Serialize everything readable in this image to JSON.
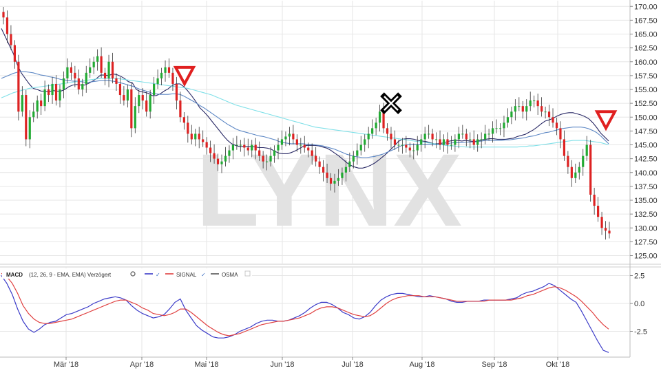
{
  "chart_data": {
    "type": "line",
    "watermark": "LYNX",
    "x_axis": {
      "ticks": [
        "Mär '18",
        "Apr '18",
        "Mai '18",
        "Jun '18",
        "Jul '18",
        "Aug '18",
        "Sep '18",
        "Okt '18"
      ]
    },
    "price_panel": {
      "type": "candlestick",
      "y_axis": {
        "range": [
          125,
          170
        ],
        "ticks": [
          "170.00",
          "167.50",
          "165.00",
          "162.50",
          "160.00",
          "157.50",
          "155.00",
          "152.50",
          "150.00",
          "147.50",
          "145.00",
          "142.50",
          "140.00",
          "137.50",
          "135.00",
          "132.50",
          "130.00",
          "127.50",
          "125.00"
        ]
      },
      "closes": [
        168,
        165,
        163,
        160,
        151,
        154,
        146,
        150,
        151,
        153,
        152,
        155,
        154,
        156,
        153,
        155,
        157,
        159,
        158,
        157,
        155,
        156,
        158,
        159,
        160,
        161,
        158,
        157,
        160,
        157,
        156,
        154,
        153,
        155,
        148,
        152,
        154,
        153,
        151,
        154,
        156,
        157,
        158,
        159,
        158,
        156,
        153,
        150,
        149,
        147,
        146,
        147,
        146,
        145.5,
        144.5,
        143.5,
        142.5,
        141.5,
        142,
        143,
        144,
        145,
        145,
        145,
        144.5,
        144,
        145,
        144,
        143,
        142,
        142,
        143,
        144,
        145,
        146,
        146.5,
        147,
        146,
        145,
        145,
        144.5,
        144,
        143,
        142,
        141,
        140,
        139,
        138,
        138.5,
        139,
        140,
        141,
        142,
        143,
        144,
        145,
        146,
        147,
        148,
        149,
        151,
        148,
        147,
        146,
        145,
        145,
        145,
        144.5,
        144,
        144,
        145,
        146,
        147,
        147,
        146,
        146,
        145,
        146,
        145,
        145,
        146,
        147,
        147,
        146,
        146,
        145,
        146,
        146,
        147,
        147,
        148,
        148,
        148,
        149,
        150,
        151,
        152,
        152,
        151,
        152,
        153,
        153,
        152,
        151,
        151,
        150,
        149,
        148,
        146,
        143,
        141,
        139,
        140,
        141,
        143,
        145,
        136,
        134,
        132,
        130,
        129.5,
        129
      ],
      "series": [
        {
          "name": "EMA short",
          "color": "#2a2a66",
          "values": [
            166,
            164.5,
            163,
            161.5,
            159.5,
            158,
            157,
            156,
            155.2,
            155,
            154.7,
            154.7,
            154.6,
            154.8,
            154.7,
            154.7,
            155,
            155.5,
            155.8,
            155.9,
            155.8,
            155.8,
            156.1,
            156.5,
            157,
            157.6,
            157.6,
            157.5,
            157.8,
            157.7,
            157.4,
            157,
            156.4,
            156.2,
            155,
            154.6,
            154.5,
            154.3,
            153.9,
            153.9,
            154.2,
            154.7,
            155.1,
            155.7,
            156,
            156,
            155.5,
            154.7,
            153.8,
            152.8,
            151.7,
            151,
            150.2,
            149.3,
            148.4,
            147.5,
            146.6,
            145.8,
            145.2,
            144.9,
            144.7,
            144.7,
            144.7,
            144.7,
            144.6,
            144.5,
            144.5,
            144.4,
            144.2,
            143.8,
            143.5,
            143.4,
            143.4,
            143.6,
            143.9,
            144.3,
            144.7,
            144.9,
            144.9,
            144.9,
            144.8,
            144.6,
            144.4,
            144,
            143.5,
            143,
            142.4,
            141.8,
            141.3,
            141,
            140.8,
            140.8,
            141,
            141.3,
            141.7,
            142.2,
            142.8,
            143.4,
            144.1,
            144.8,
            145.6,
            146,
            146.1,
            146.1,
            146,
            145.8,
            145.7,
            145.6,
            145.4,
            145.2,
            145.2,
            145.3,
            145.5,
            145.7,
            145.8,
            145.8,
            145.7,
            145.8,
            145.7,
            145.6,
            145.7,
            145.9,
            146,
            146.1,
            146.1,
            146,
            146,
            146,
            146.1,
            146.2,
            146.5,
            146.7,
            146.9,
            147.3,
            147.7,
            148.2,
            148.8,
            149.3,
            149.5,
            149.8,
            150.2,
            150.5,
            150.7,
            150.8,
            150.8,
            150.6,
            150.4,
            150.1,
            149.7,
            149,
            148.1,
            147.1,
            146.4,
            145.7
          ]
        },
        {
          "name": "EMA mid",
          "color": "#5b86c4",
          "values": [
            157,
            157.3,
            157.6,
            157.9,
            158.1,
            158.2,
            158.2,
            158.1,
            158,
            157.8,
            157.6,
            157.5,
            157.3,
            157.2,
            157,
            156.8,
            156.7,
            156.6,
            156.5,
            156.5,
            156.4,
            156.3,
            156.3,
            156.4,
            156.5,
            156.6,
            156.6,
            156.6,
            156.5,
            156.4,
            156.2,
            156,
            155.8,
            155.6,
            155.3,
            155,
            154.8,
            154.6,
            154.3,
            154.2,
            154.1,
            154.1,
            154.1,
            154.2,
            154.2,
            154.1,
            153.8,
            153.4,
            153,
            152.6,
            152.1,
            151.7,
            151.2,
            150.7,
            150.2,
            149.7,
            149.2,
            148.7,
            148.3,
            147.9,
            147.6,
            147.4,
            147.2,
            147,
            146.8,
            146.6,
            146.5,
            146.3,
            146.1,
            145.9,
            145.6,
            145.4,
            145.3,
            145.2,
            145.2,
            145.2,
            145.2,
            145.1,
            145.1,
            145,
            144.9,
            144.8,
            144.6,
            144.4,
            144.2,
            143.9,
            143.6,
            143.3,
            143.1,
            142.9,
            142.8,
            142.7,
            142.7,
            142.8,
            142.9,
            143.1,
            143.3,
            143.6,
            143.9,
            144.2,
            144.6,
            144.9,
            145,
            145.1,
            145.1,
            145.1,
            145.1,
            145.1,
            145.1,
            145,
            145,
            145.1,
            145.2,
            145.3,
            145.4,
            145.4,
            145.4,
            145.5,
            145.5,
            145.5,
            145.6,
            145.7,
            145.8,
            145.8,
            145.8,
            145.8,
            145.8,
            145.9,
            145.9,
            146,
            146.1,
            146.2,
            146.3,
            146.5,
            146.6,
            146.8,
            147,
            147.2,
            147.3,
            147.5,
            147.7,
            147.9,
            148,
            148.1,
            148.2,
            148.2,
            148.2,
            148.1,
            147.9,
            147.6,
            147.2,
            146.6,
            145.9,
            145.2
          ]
        },
        {
          "name": "EMA long",
          "color": "#7fe0e8",
          "values": [
            153.5,
            153.8,
            154.1,
            154.4,
            154.6,
            154.8,
            155,
            155.2,
            155.3,
            155.4,
            155.5,
            155.6,
            155.7,
            155.8,
            155.9,
            156,
            156.1,
            156.2,
            156.3,
            156.4,
            156.5,
            156.6,
            156.7,
            156.8,
            156.9,
            157,
            157,
            157,
            157,
            157,
            156.9,
            156.8,
            156.7,
            156.6,
            156.5,
            156.4,
            156.3,
            156.2,
            156.1,
            156,
            155.9,
            155.8,
            155.7,
            155.6,
            155.5,
            155.4,
            155.3,
            155.2,
            155,
            154.8,
            154.6,
            154.4,
            154.2,
            154,
            153.7,
            153.4,
            153.1,
            152.8,
            152.5,
            152.2,
            152,
            151.8,
            151.6,
            151.4,
            151.2,
            151,
            150.8,
            150.6,
            150.4,
            150.2,
            150,
            149.8,
            149.6,
            149.4,
            149.2,
            149,
            148.8,
            148.6,
            148.4,
            148.2,
            148.1,
            148,
            147.9,
            147.8,
            147.7,
            147.6,
            147.5,
            147.4,
            147.3,
            147.2,
            147.1,
            147,
            146.9,
            146.8,
            146.7,
            146.6,
            146.5,
            146.4,
            146.3,
            146.2,
            146.1,
            146,
            145.9,
            145.8,
            145.7,
            145.6,
            145.5,
            145.4,
            145.3,
            145.2,
            145.1,
            145,
            144.9,
            144.8,
            144.8,
            144.7,
            144.7,
            144.6,
            144.6,
            144.6,
            144.6,
            144.6,
            144.6,
            144.6,
            144.6,
            144.6,
            144.6,
            144.6,
            144.6,
            144.6,
            144.6,
            144.7,
            144.7,
            144.8,
            144.8,
            144.9,
            145,
            145.1,
            145.2,
            145.3,
            145.4,
            145.5,
            145.6,
            145.7,
            145.8,
            145.8,
            145.8,
            145.8,
            145.7,
            145.6,
            145.5,
            145.4,
            145.2,
            145
          ]
        }
      ],
      "markers": [
        {
          "symbol": "down-triangle",
          "color": "#e02020",
          "x_label": "Apr '18",
          "price": 157.5
        },
        {
          "symbol": "cross",
          "color": "#000000",
          "x_label": "Jul '18",
          "price": 152.5
        },
        {
          "symbol": "down-triangle",
          "color": "#e02020",
          "x_label": "Okt '18",
          "price": 149.5
        }
      ]
    },
    "macd_panel": {
      "legend": {
        "label": "MACD",
        "params": "(12, 26, 9 - EMA, EMA) Verzögert",
        "signal": "SIGNAL",
        "osma": "OSMA"
      },
      "y_axis": {
        "range": [
          -4.5,
          3.0
        ],
        "ticks": [
          "2.5",
          "0.0",
          "-2.5"
        ]
      },
      "series": [
        {
          "name": "MACD",
          "color": "#3b3bc8",
          "values": [
            2.5,
            1.8,
            0.8,
            -0.5,
            -1.6,
            -2.3,
            -2.6,
            -2.3,
            -1.9,
            -1.7,
            -1.6,
            -1.3,
            -1.0,
            -0.9,
            -0.7,
            -0.5,
            -0.3,
            0.0,
            0.2,
            0.4,
            0.5,
            0.6,
            0.5,
            0.3,
            -0.2,
            -0.6,
            -0.9,
            -1.1,
            -1.3,
            -1.2,
            -1.0,
            -0.5,
            0.1,
            0.4,
            -0.6,
            -1.3,
            -2.0,
            -2.4,
            -2.7,
            -3.0,
            -3.1,
            -3.1,
            -3.0,
            -2.8,
            -2.5,
            -2.3,
            -2.1,
            -1.8,
            -1.6,
            -1.5,
            -1.5,
            -1.6,
            -1.6,
            -1.5,
            -1.3,
            -1.1,
            -0.8,
            -0.4,
            -0.1,
            0.1,
            0.1,
            -0.1,
            -0.4,
            -0.8,
            -1.0,
            -1.3,
            -1.4,
            -1.2,
            -0.8,
            -0.2,
            0.3,
            0.6,
            0.8,
            0.9,
            0.9,
            0.8,
            0.7,
            0.6,
            0.6,
            0.7,
            0.6,
            0.5,
            0.4,
            0.2,
            0.1,
            0.1,
            0.2,
            0.2,
            0.2,
            0.3,
            0.3,
            0.3,
            0.3,
            0.3,
            0.4,
            0.5,
            0.8,
            1.0,
            1.1,
            1.3,
            1.5,
            1.8,
            1.6,
            1.2,
            0.8,
            0.4,
            0.1,
            -0.7,
            -1.6,
            -2.5,
            -3.4,
            -4.2,
            -4.4
          ]
        },
        {
          "name": "SIGNAL",
          "color": "#e04040",
          "values": [
            2.7,
            2.4,
            1.8,
            0.9,
            -0.2,
            -0.9,
            -1.4,
            -1.7,
            -1.8,
            -1.8,
            -1.7,
            -1.6,
            -1.5,
            -1.4,
            -1.2,
            -1.0,
            -0.8,
            -0.6,
            -0.4,
            -0.2,
            0.0,
            0.2,
            0.3,
            0.3,
            0.1,
            -0.1,
            -0.4,
            -0.6,
            -0.9,
            -1.0,
            -1.1,
            -1.0,
            -0.8,
            -0.5,
            -0.5,
            -0.8,
            -1.2,
            -1.6,
            -2.0,
            -2.3,
            -2.6,
            -2.8,
            -2.9,
            -2.8,
            -2.7,
            -2.5,
            -2.3,
            -2.1,
            -1.9,
            -1.8,
            -1.7,
            -1.6,
            -1.6,
            -1.5,
            -1.4,
            -1.3,
            -1.1,
            -0.9,
            -0.6,
            -0.4,
            -0.3,
            -0.3,
            -0.4,
            -0.6,
            -0.8,
            -1.0,
            -1.1,
            -1.2,
            -1.1,
            -0.8,
            -0.4,
            0.0,
            0.3,
            0.5,
            0.6,
            0.7,
            0.7,
            0.7,
            0.6,
            0.6,
            0.6,
            0.5,
            0.4,
            0.3,
            0.2,
            0.2,
            0.2,
            0.2,
            0.2,
            0.2,
            0.3,
            0.3,
            0.3,
            0.3,
            0.3,
            0.4,
            0.5,
            0.7,
            0.8,
            1.0,
            1.2,
            1.4,
            1.5,
            1.4,
            1.2,
            0.9,
            0.6,
            0.2,
            -0.3,
            -0.8,
            -1.4,
            -1.9,
            -2.3
          ]
        }
      ]
    }
  }
}
